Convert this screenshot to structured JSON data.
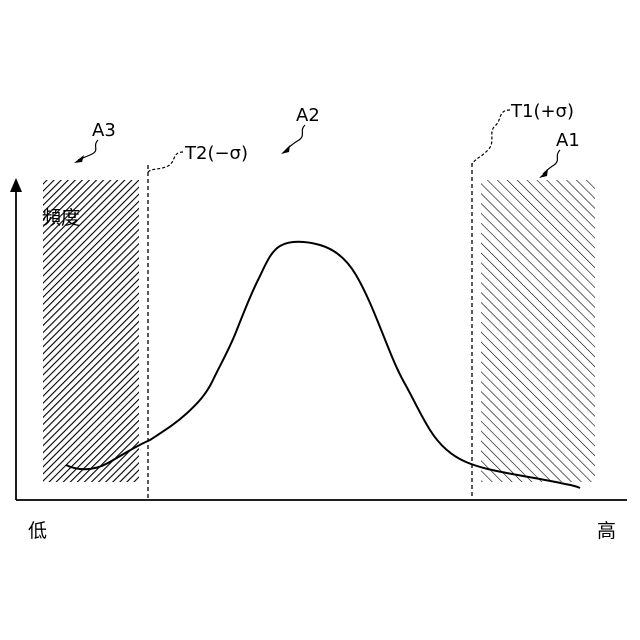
{
  "figure": {
    "y_axis_label": "頻度",
    "x_axis_low": "低",
    "x_axis_high": "高",
    "regions": [
      {
        "id": "A3",
        "label": "A3"
      },
      {
        "id": "A2",
        "label": "A2"
      },
      {
        "id": "A1",
        "label": "A1"
      }
    ],
    "thresholds": [
      {
        "id": "T2",
        "label": "T2(−σ)"
      },
      {
        "id": "T1",
        "label": "T1(+σ)"
      }
    ]
  },
  "colors": {
    "line": "#000000",
    "hatch": "#000000",
    "background": "#ffffff"
  }
}
